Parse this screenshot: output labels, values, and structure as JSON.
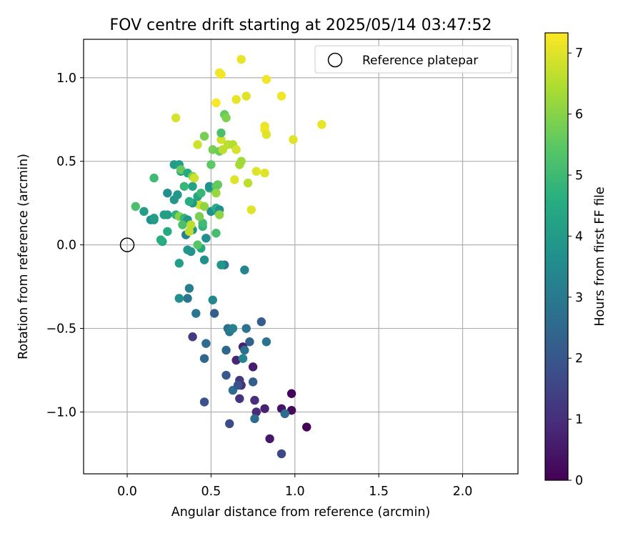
{
  "chart_data": {
    "type": "scatter",
    "title": "FOV centre drift starting at 2025/05/14 03:47:52",
    "xlabel": "Angular distance from reference (arcmin)",
    "ylabel": "Rotation from reference (arcmin)",
    "xlim": [
      -0.26,
      2.33
    ],
    "ylim": [
      -1.37,
      1.23
    ],
    "xticks": [
      "0.0",
      "0.5",
      "1.0",
      "1.5",
      "2.0"
    ],
    "xtick_values": [
      0,
      0.5,
      1.0,
      1.5,
      2.0
    ],
    "yticks": [
      "−1.0",
      "−0.5",
      "0.0",
      "0.5",
      "1.0"
    ],
    "ytick_values": [
      -1.0,
      -0.5,
      0.0,
      0.5,
      1.0
    ],
    "grid": true,
    "legend": {
      "placement": "top-right",
      "entries": [
        "Reference platepar"
      ]
    },
    "reference_point": {
      "x": 0.0,
      "y": 0.0
    },
    "colorbar": {
      "label": "Hours from first FF file",
      "colormap": "viridis",
      "range": [
        0,
        7.33
      ],
      "ticks": [
        "0",
        "1",
        "2",
        "3",
        "4",
        "5",
        "6",
        "7"
      ],
      "tick_values": [
        0,
        1,
        2,
        3,
        4,
        5,
        6,
        7
      ]
    },
    "points": [
      [
        1.07,
        -1.09,
        0.05
      ],
      [
        0.98,
        -0.89,
        0.1
      ],
      [
        0.98,
        -0.99,
        0.2
      ],
      [
        0.92,
        -0.98,
        0.4
      ],
      [
        0.85,
        -1.16,
        0.5
      ],
      [
        0.82,
        -0.98,
        0.7
      ],
      [
        0.77,
        -1.0,
        0.9
      ],
      [
        0.76,
        -0.93,
        1.0
      ],
      [
        0.75,
        -0.73,
        0.6
      ],
      [
        0.69,
        -0.61,
        0.7
      ],
      [
        0.67,
        -0.92,
        1.1
      ],
      [
        0.68,
        -0.84,
        1.0
      ],
      [
        0.67,
        -0.81,
        1.2
      ],
      [
        0.65,
        -0.69,
        0.8
      ],
      [
        0.92,
        -1.25,
        1.6
      ],
      [
        0.61,
        -1.07,
        1.7
      ],
      [
        0.63,
        -0.87,
        2.6
      ],
      [
        0.66,
        -0.84,
        1.9
      ],
      [
        0.59,
        -0.78,
        2.0
      ],
      [
        0.46,
        -0.94,
        1.9
      ],
      [
        0.39,
        -0.55,
        1.3
      ],
      [
        0.75,
        -0.82,
        2.2
      ],
      [
        0.73,
        -0.58,
        2.3
      ],
      [
        0.7,
        -0.63,
        2.7
      ],
      [
        0.69,
        -0.68,
        3.3
      ],
      [
        0.59,
        -0.63,
        2.5
      ],
      [
        0.46,
        -0.68,
        2.5
      ],
      [
        0.47,
        -0.59,
        2.6
      ],
      [
        0.6,
        -0.5,
        2.7
      ],
      [
        0.61,
        -0.52,
        2.9
      ],
      [
        0.63,
        -0.5,
        3.2
      ],
      [
        0.71,
        -0.5,
        2.8
      ],
      [
        0.8,
        -0.46,
        2.2
      ],
      [
        0.83,
        -0.58,
        2.8
      ],
      [
        0.76,
        -1.04,
        2.6
      ],
      [
        0.94,
        -1.01,
        2.6
      ],
      [
        0.52,
        -0.41,
        2.2
      ],
      [
        0.41,
        -0.41,
        2.9
      ],
      [
        0.36,
        -0.32,
        2.9
      ],
      [
        0.31,
        -0.32,
        3.6
      ],
      [
        0.37,
        -0.26,
        3.1
      ],
      [
        0.51,
        -0.33,
        3.4
      ],
      [
        0.7,
        -0.15,
        3.3
      ],
      [
        0.58,
        -0.12,
        3.0
      ],
      [
        0.56,
        -0.12,
        3.9
      ],
      [
        0.31,
        -0.11,
        4.1
      ],
      [
        0.46,
        -0.09,
        3.7
      ],
      [
        0.36,
        -0.03,
        3.9
      ],
      [
        0.38,
        -0.04,
        3.8
      ],
      [
        0.44,
        -0.02,
        4.4
      ],
      [
        0.42,
        0.0,
        5.4
      ],
      [
        0.47,
        0.04,
        3.6
      ],
      [
        0.35,
        0.06,
        3.2
      ],
      [
        0.39,
        0.09,
        3.8
      ],
      [
        0.24,
        0.08,
        4.5
      ],
      [
        0.21,
        0.02,
        4.4
      ],
      [
        0.2,
        0.03,
        4.6
      ],
      [
        0.16,
        0.15,
        3.9
      ],
      [
        0.14,
        0.15,
        3.7
      ],
      [
        0.16,
        0.16,
        4.1
      ],
      [
        0.22,
        0.18,
        4.1
      ],
      [
        0.24,
        0.18,
        4.1
      ],
      [
        0.29,
        0.18,
        4.7
      ],
      [
        0.31,
        0.17,
        6.0
      ],
      [
        0.34,
        0.16,
        4.9
      ],
      [
        0.36,
        0.15,
        3.9
      ],
      [
        0.33,
        0.12,
        5.2
      ],
      [
        0.38,
        0.12,
        6.6
      ],
      [
        0.37,
        0.08,
        6.6
      ],
      [
        0.45,
        0.11,
        4.8
      ],
      [
        0.45,
        0.13,
        5.0
      ],
      [
        0.5,
        0.2,
        3.7
      ],
      [
        0.54,
        0.2,
        4.2
      ],
      [
        0.53,
        0.22,
        4.6
      ],
      [
        0.55,
        0.21,
        3.6
      ],
      [
        0.55,
        0.18,
        6.1
      ],
      [
        0.53,
        0.07,
        5.1
      ],
      [
        0.43,
        0.17,
        5.8
      ],
      [
        0.43,
        0.24,
        6.8
      ],
      [
        0.46,
        0.23,
        6.1
      ],
      [
        0.39,
        0.25,
        3.9
      ],
      [
        0.37,
        0.26,
        4.6
      ],
      [
        0.42,
        0.29,
        4.3
      ],
      [
        0.44,
        0.31,
        4.9
      ],
      [
        0.49,
        0.34,
        4.3
      ],
      [
        0.5,
        0.34,
        4.7
      ],
      [
        0.49,
        0.35,
        3.7
      ],
      [
        0.53,
        0.35,
        5.4
      ],
      [
        0.53,
        0.31,
        6.2
      ],
      [
        0.54,
        0.36,
        5.6
      ],
      [
        0.39,
        0.35,
        4.3
      ],
      [
        0.34,
        0.35,
        4.9
      ],
      [
        0.3,
        0.3,
        3.9
      ],
      [
        0.24,
        0.31,
        3.6
      ],
      [
        0.28,
        0.27,
        3.9
      ],
      [
        0.1,
        0.2,
        4.1
      ],
      [
        0.05,
        0.23,
        5.2
      ],
      [
        0.16,
        0.4,
        5.0
      ],
      [
        0.28,
        0.48,
        4.0
      ],
      [
        0.31,
        0.48,
        4.1
      ],
      [
        0.32,
        0.44,
        4.0
      ],
      [
        0.32,
        0.45,
        5.6
      ],
      [
        0.36,
        0.43,
        4.5
      ],
      [
        0.39,
        0.41,
        5.9
      ],
      [
        0.4,
        0.4,
        6.8
      ],
      [
        0.5,
        0.48,
        5.5
      ],
      [
        0.51,
        0.57,
        5.8
      ],
      [
        0.55,
        0.56,
        5.7
      ],
      [
        0.56,
        0.63,
        6.8
      ],
      [
        0.57,
        0.57,
        6.6
      ],
      [
        0.6,
        0.6,
        6.6
      ],
      [
        0.63,
        0.6,
        6.5
      ],
      [
        0.65,
        0.57,
        6.9
      ],
      [
        0.67,
        0.48,
        6.4
      ],
      [
        0.68,
        0.5,
        6.3
      ],
      [
        0.72,
        0.37,
        6.6
      ],
      [
        0.64,
        0.39,
        7.0
      ],
      [
        0.74,
        0.21,
        7.0
      ],
      [
        0.77,
        0.44,
        7.0
      ],
      [
        0.82,
        0.43,
        7.0
      ],
      [
        0.42,
        0.6,
        6.8
      ],
      [
        0.46,
        0.65,
        5.8
      ],
      [
        0.56,
        0.67,
        5.2
      ],
      [
        0.58,
        0.78,
        5.6
      ],
      [
        0.59,
        0.76,
        5.9
      ],
      [
        0.65,
        0.87,
        7.1
      ],
      [
        0.71,
        0.89,
        7.0
      ],
      [
        0.53,
        0.85,
        7.3
      ],
      [
        0.29,
        0.76,
        6.9
      ],
      [
        0.55,
        1.03,
        7.2
      ],
      [
        0.56,
        1.02,
        7.2
      ],
      [
        0.68,
        1.11,
        7.1
      ],
      [
        0.83,
        0.99,
        7.2
      ],
      [
        0.92,
        0.89,
        7.2
      ],
      [
        0.82,
        0.71,
        7.1
      ],
      [
        0.82,
        0.69,
        7.2
      ],
      [
        0.83,
        0.66,
        7.0
      ],
      [
        0.99,
        0.63,
        7.0
      ],
      [
        1.16,
        0.72,
        7.1
      ]
    ]
  }
}
